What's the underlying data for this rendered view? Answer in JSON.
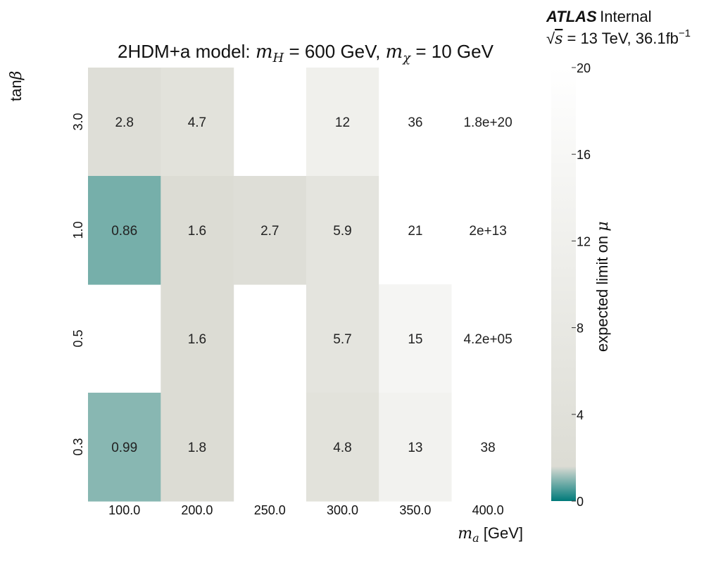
{
  "chart_data": {
    "type": "heatmap",
    "title": {
      "prefix": "2HDM+a model: ",
      "mH_symbol": "m",
      "mH_sub": "H",
      "mH_value": " = 600 GeV, ",
      "mchi_symbol": "m",
      "mchi_sub": "χ",
      "mchi_value": " = 10 GeV"
    },
    "experiment": {
      "name": "ATLAS",
      "status": "Internal",
      "energy_prefix": "√",
      "energy_var": "s",
      "energy_value": " = 13 TeV, 36.1fb",
      "lumi_exp": "−1"
    },
    "x_axis": {
      "label_symbol": "m",
      "label_sub": "a",
      "label_unit": " [GeV]",
      "categories": [
        "100.0",
        "200.0",
        "250.0",
        "300.0",
        "350.0",
        "400.0"
      ]
    },
    "y_axis": {
      "label_prefix": "tan",
      "label_symbol": "β",
      "categories": [
        "3.0",
        "1.0",
        "0.5",
        "0.3"
      ]
    },
    "values": [
      [
        "2.8",
        "4.7",
        null,
        "12",
        "36",
        "1.8e+20"
      ],
      [
        "0.86",
        "1.6",
        "2.7",
        "5.9",
        "21",
        "2e+13"
      ],
      [
        null,
        "1.6",
        null,
        "5.7",
        "15",
        "4.2e+05"
      ],
      [
        "0.99",
        "1.8",
        null,
        "4.8",
        "13",
        "38"
      ]
    ],
    "colorbar": {
      "label_text": "expected limit on ",
      "label_symbol": "μ",
      "range": [
        0,
        20
      ],
      "ticks": [
        "0",
        "4",
        "8",
        "12",
        "16",
        "20"
      ]
    },
    "colors": {
      "low": "#007a7a",
      "mid": "#dcdcd4",
      "high": "#ffffff"
    },
    "grid": false
  }
}
